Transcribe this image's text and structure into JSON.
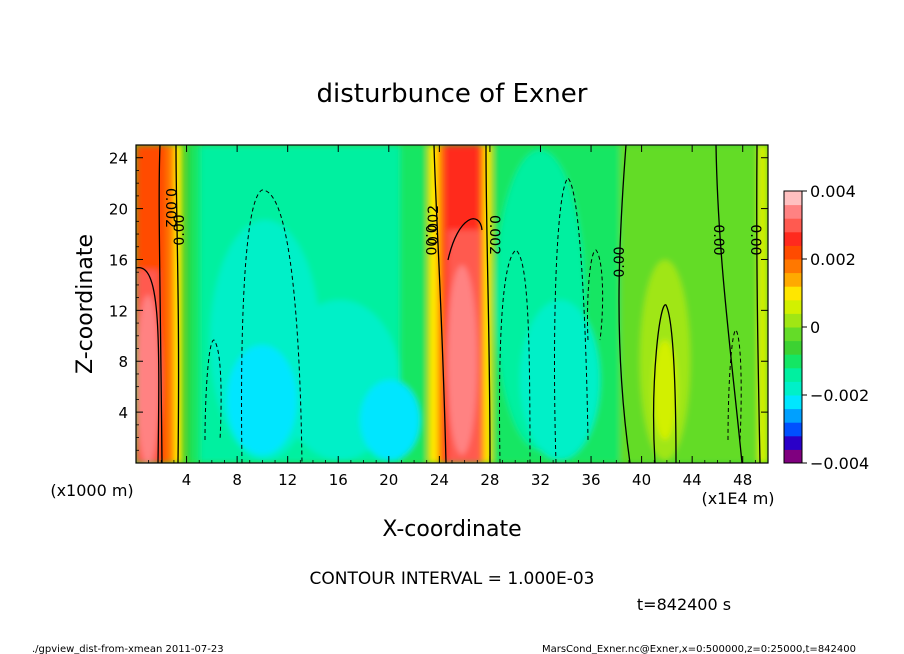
{
  "chart_data": {
    "type": "heatmap",
    "title": "disturbunce of Exner",
    "xlabel": "X-coordinate",
    "ylabel": "Z-coordinate",
    "x_unit": "(x1E4 m)",
    "y_unit": "(x1000 m)",
    "xlim": [
      0,
      50
    ],
    "ylim": [
      0,
      25
    ],
    "xticks": [
      4,
      8,
      12,
      16,
      20,
      24,
      28,
      32,
      36,
      40,
      44,
      48
    ],
    "yticks": [
      4,
      8,
      12,
      16,
      20,
      24
    ],
    "colorbar": {
      "min": -0.004,
      "max": 0.004,
      "tick_values": [
        0.004,
        0.002,
        0,
        -0.002,
        -0.004
      ],
      "tick_labels": [
        "0.004",
        "0.002",
        "0",
        "−0.002",
        "−0.004"
      ],
      "colors": [
        "#7f007f",
        "#2a00c8",
        "#0050ff",
        "#00a0ff",
        "#00e6ff",
        "#00f0c8",
        "#00f0a0",
        "#14e664",
        "#3cd232",
        "#64dc28",
        "#a0e614",
        "#d2f000",
        "#ffe600",
        "#ffaa00",
        "#ff7800",
        "#ff4b00",
        "#ff2a1e",
        "#ff5a50",
        "#ff8282",
        "#ffc0c0"
      ]
    },
    "contour_labels": [
      "0.002",
      "0.00",
      "0.00",
      "0.002",
      "0.002",
      "0.00",
      "0.00",
      "0.00"
    ],
    "contour_interval_text": "CONTOUR INTERVAL = 1.000E-03",
    "time_text": "t=842400 s"
  },
  "footer": {
    "left": "./gpview_dist-from-xmean  2011-07-23",
    "right": "MarsCond_Exner.nc@Exner,x=0:500000,z=0:25000,t=842400"
  }
}
